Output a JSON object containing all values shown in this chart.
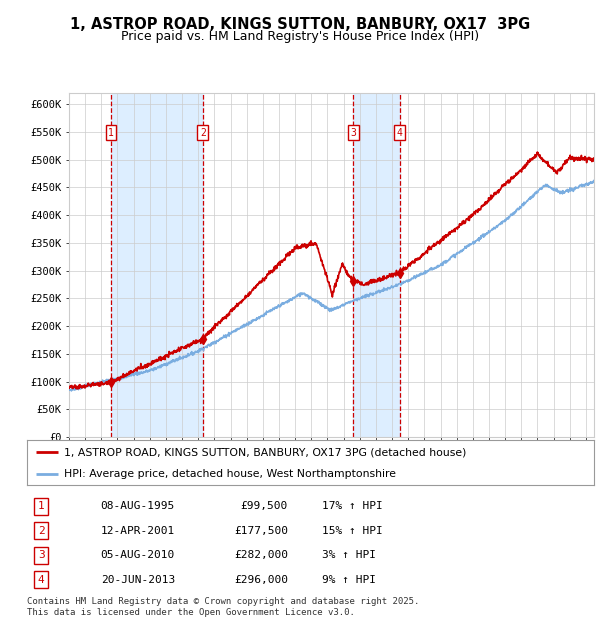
{
  "title": "1, ASTROP ROAD, KINGS SUTTON, BANBURY, OX17  3PG",
  "subtitle": "Price paid vs. HM Land Registry's House Price Index (HPI)",
  "ylabel_ticks": [
    "£0",
    "£50K",
    "£100K",
    "£150K",
    "£200K",
    "£250K",
    "£300K",
    "£350K",
    "£400K",
    "£450K",
    "£500K",
    "£550K",
    "£600K"
  ],
  "ytick_values": [
    0,
    50000,
    100000,
    150000,
    200000,
    250000,
    300000,
    350000,
    400000,
    450000,
    500000,
    550000,
    600000
  ],
  "xmin": 1993.0,
  "xmax": 2025.5,
  "ymin": 0,
  "ymax": 620000,
  "sale_dates": [
    1995.6,
    2001.28,
    2010.59,
    2013.46
  ],
  "sale_prices": [
    99500,
    177500,
    282000,
    296000
  ],
  "sale_labels": [
    "1",
    "2",
    "3",
    "4"
  ],
  "sale_hpi_pct": [
    "17% ↑ HPI",
    "15% ↑ HPI",
    "3% ↑ HPI",
    "9% ↑ HPI"
  ],
  "sale_date_labels": [
    "08-AUG-1995",
    "12-APR-2001",
    "05-AUG-2010",
    "20-JUN-2013"
  ],
  "sale_price_labels": [
    "£99,500",
    "£177,500",
    "£282,000",
    "£296,000"
  ],
  "red_line_color": "#cc0000",
  "blue_line_color": "#7aade0",
  "vline_color": "#cc0000",
  "shade_color": "#ddeeff",
  "grid_color": "#cccccc",
  "bg_color": "#ffffff",
  "legend_red_label": "1, ASTROP ROAD, KINGS SUTTON, BANBURY, OX17 3PG (detached house)",
  "legend_blue_label": "HPI: Average price, detached house, West Northamptonshire",
  "footer": "Contains HM Land Registry data © Crown copyright and database right 2025.\nThis data is licensed under the Open Government Licence v3.0.",
  "title_fontsize": 10.5,
  "subtitle_fontsize": 9,
  "tick_fontsize": 7.5,
  "legend_fontsize": 7.8,
  "table_fontsize": 8,
  "footer_fontsize": 6.5
}
